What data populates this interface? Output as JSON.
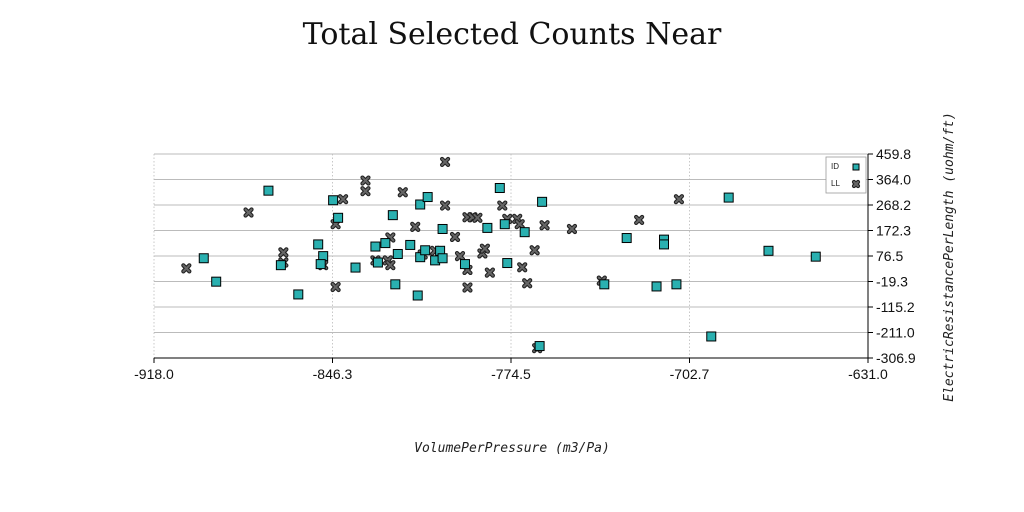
{
  "chart_data": {
    "type": "scatter",
    "title": "Total Selected Counts Near",
    "xlabel": "VolumePerPressure (m3/Pa)",
    "ylabel": "ElectricResistancePerLength (uohm/ft)",
    "xlim": [
      -918.0,
      -631.0
    ],
    "ylim": [
      -306.9,
      459.8
    ],
    "x_ticks": [
      "-918.0",
      "-846.3",
      "-774.5",
      "-702.7",
      "-631.0"
    ],
    "y_ticks": [
      "459.8",
      "364.0",
      "268.2",
      "172.3",
      "76.5",
      "-19.3",
      "-115.2",
      "-211.0",
      "-306.9"
    ],
    "grid": {
      "x": "dotted",
      "y": "solid"
    },
    "legend_position": "top-right",
    "colors": {
      "ID": "#2ab0b0",
      "LL": "#666666",
      "grid": "#bbbbbb"
    },
    "series": [
      {
        "name": "ID",
        "marker": "square",
        "points": [
          [
            -898,
            68
          ],
          [
            -893,
            -20
          ],
          [
            -872,
            322
          ],
          [
            -867,
            42
          ],
          [
            -860,
            -68
          ],
          [
            -852,
            120
          ],
          [
            -850,
            76
          ],
          [
            -851,
            46
          ],
          [
            -846,
            286
          ],
          [
            -844,
            220
          ],
          [
            -837,
            33
          ],
          [
            -829,
            112
          ],
          [
            -828,
            52
          ],
          [
            -825,
            125
          ],
          [
            -822,
            230
          ],
          [
            -821,
            -30
          ],
          [
            -820,
            84
          ],
          [
            -815,
            118
          ],
          [
            -812,
            -72
          ],
          [
            -811,
            270
          ],
          [
            -811,
            72
          ],
          [
            -809,
            98
          ],
          [
            -808,
            298
          ],
          [
            -805,
            60
          ],
          [
            -803,
            96
          ],
          [
            -802,
            68
          ],
          [
            -802,
            178
          ],
          [
            -793,
            46
          ],
          [
            -784,
            182
          ],
          [
            -779,
            332
          ],
          [
            -777,
            196
          ],
          [
            -776,
            50
          ],
          [
            -769,
            166
          ],
          [
            -763,
            -262
          ],
          [
            -762,
            280
          ],
          [
            -737,
            -30
          ],
          [
            -728,
            144
          ],
          [
            -716,
            -38
          ],
          [
            -713,
            138
          ],
          [
            -713,
            120
          ],
          [
            -708,
            -30
          ],
          [
            -694,
            -226
          ],
          [
            -687,
            296
          ],
          [
            -671,
            96
          ],
          [
            -652,
            74
          ]
        ]
      },
      {
        "name": "LL",
        "marker": "cross",
        "points": [
          [
            -905,
            30
          ],
          [
            -880,
            240
          ],
          [
            -866,
            52
          ],
          [
            -866,
            90
          ],
          [
            -850,
            42
          ],
          [
            -845,
            196
          ],
          [
            -845,
            -40
          ],
          [
            -842,
            290
          ],
          [
            -833,
            360
          ],
          [
            -833,
            320
          ],
          [
            -829,
            60
          ],
          [
            -824,
            60
          ],
          [
            -823,
            42
          ],
          [
            -823,
            146
          ],
          [
            -818,
            316
          ],
          [
            -813,
            186
          ],
          [
            -810,
            82
          ],
          [
            -805,
            96
          ],
          [
            -801,
            266
          ],
          [
            -801,
            430
          ],
          [
            -797,
            148
          ],
          [
            -795,
            76
          ],
          [
            -792,
            222
          ],
          [
            -792,
            24
          ],
          [
            -792,
            -42
          ],
          [
            -790,
            222
          ],
          [
            -788,
            220
          ],
          [
            -786,
            86
          ],
          [
            -785,
            104
          ],
          [
            -783,
            14
          ],
          [
            -778,
            266
          ],
          [
            -776,
            216
          ],
          [
            -772,
            216
          ],
          [
            -771,
            196
          ],
          [
            -770,
            34
          ],
          [
            -768,
            -26
          ],
          [
            -765,
            98
          ],
          [
            -761,
            192
          ],
          [
            -764,
            -270
          ],
          [
            -750,
            178
          ],
          [
            -738,
            -16
          ],
          [
            -723,
            212
          ],
          [
            -707,
            290
          ]
        ]
      }
    ]
  }
}
